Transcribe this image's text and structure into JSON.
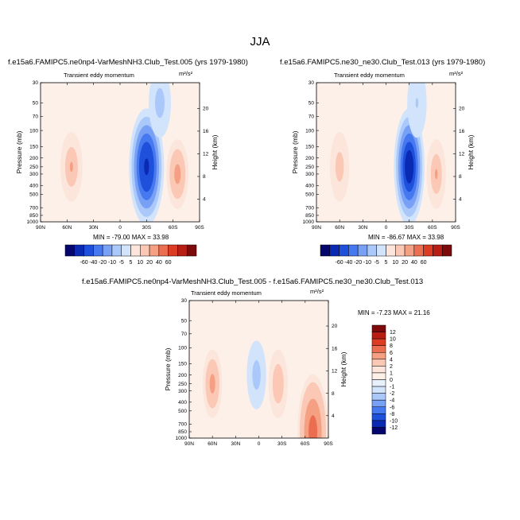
{
  "title": "JJA",
  "panels": [
    {
      "title": "f.e15a6.FAMIPC5.ne0np4-VarMeshNH3.Club_Test.005 (yrs 1979-1980)",
      "subtitle": "Transient eddy momentum",
      "units": "m²/s²",
      "ylabel": "Pressure (mb)",
      "y2label": "Height (km)",
      "minmax": "MIN = -79.00  MAX = 33.98"
    },
    {
      "title": "f.e15a6.FAMIPC5.ne30_ne30.Club_Test.013 (yrs 1979-1980)",
      "subtitle": "Transient eddy momentum",
      "units": "m²/s²",
      "ylabel": "Pressure (mb)",
      "y2label": "Height (km)",
      "minmax": "MIN = -86.67  MAX = 33.98"
    },
    {
      "title": "f.e15a6.FAMIPC5.ne0np4-VarMeshNH3.Club_Test.005 - f.e15a6.FAMIPC5.ne30_ne30.Club_Test.013",
      "subtitle": "Transient eddy momentum",
      "units": "m²/s²",
      "ylabel": "Pressure (mb)",
      "y2label": "Height (km)",
      "minmax": "MIN = -7.23  MAX = 21.16"
    }
  ],
  "chart_data": [
    {
      "type": "heatmap",
      "title": "f.e15a6.FAMIPC5.ne0np4-VarMeshNH3.Club_Test.005 (yrs 1979-1980)",
      "x_ticks": [
        "90N",
        "60N",
        "30N",
        "0",
        "30S",
        "60S",
        "90S"
      ],
      "y_ticks": [
        "30",
        "50",
        "70",
        "100",
        "150",
        "200",
        "250",
        "300",
        "400",
        "500",
        "700",
        "850",
        "1000"
      ],
      "y2_ticks": [
        "4",
        "8",
        "12",
        "16",
        "20"
      ],
      "xlabel": "",
      "ylabel": "Pressure (mb)",
      "y2label": "Height (km)",
      "min": -79.0,
      "max": 33.98,
      "features": [
        {
          "lat": 55,
          "p": 250,
          "value": 25
        },
        {
          "lat": -30,
          "p": 250,
          "value": -70
        },
        {
          "lat": -65,
          "p": 300,
          "value": 30
        },
        {
          "lat": -45,
          "p": 50,
          "value": -20
        }
      ]
    },
    {
      "type": "heatmap",
      "title": "f.e15a6.FAMIPC5.ne30_ne30.Club_Test.013 (yrs 1979-1980)",
      "x_ticks": [
        "90N",
        "60N",
        "30N",
        "0",
        "30S",
        "60S",
        "90S"
      ],
      "y_ticks": [
        "30",
        "50",
        "70",
        "100",
        "150",
        "200",
        "250",
        "300",
        "400",
        "500",
        "700",
        "850",
        "1000"
      ],
      "y2_ticks": [
        "4",
        "8",
        "12",
        "16",
        "20"
      ],
      "xlabel": "",
      "ylabel": "Pressure (mb)",
      "y2label": "Height (km)",
      "min": -86.67,
      "max": 33.98,
      "features": [
        {
          "lat": 60,
          "p": 250,
          "value": 20
        },
        {
          "lat": -30,
          "p": 250,
          "value": -80
        },
        {
          "lat": -65,
          "p": 300,
          "value": 30
        },
        {
          "lat": -40,
          "p": 50,
          "value": -15
        }
      ]
    },
    {
      "type": "heatmap",
      "title": "f.e15a6.FAMIPC5.ne0np4-VarMeshNH3.Club_Test.005 - f.e15a6.FAMIPC5.ne30_ne30.Club_Test.013",
      "x_ticks": [
        "90N",
        "60N",
        "30N",
        "0",
        "30S",
        "60S",
        "90S"
      ],
      "y_ticks": [
        "30",
        "50",
        "70",
        "100",
        "150",
        "200",
        "250",
        "300",
        "400",
        "500",
        "700",
        "850",
        "1000"
      ],
      "y2_ticks": [
        "4",
        "8",
        "12",
        "16",
        "20"
      ],
      "xlabel": "",
      "ylabel": "Pressure (mb)",
      "y2label": "Height (km)",
      "min": -7.23,
      "max": 21.16,
      "features": [
        {
          "lat": 60,
          "p": 250,
          "value": 8
        },
        {
          "lat": -25,
          "p": 250,
          "value": 6
        },
        {
          "lat": 3,
          "p": 200,
          "value": -5
        },
        {
          "lat": -70,
          "p": 850,
          "value": 12
        }
      ]
    }
  ],
  "colorbars": {
    "top_labels": [
      "-60",
      "-40",
      "-20",
      "-10",
      "-5",
      "5",
      "10",
      "20",
      "40",
      "60"
    ],
    "diff_labels": [
      "12",
      "10",
      "8",
      "6",
      "4",
      "2",
      "1",
      "0",
      "-1",
      "-2",
      "-4",
      "-6",
      "-8",
      "-10",
      "-12"
    ],
    "top_colors": [
      "#05056e",
      "#0a2ab4",
      "#1e50dc",
      "#4678f0",
      "#78a0f5",
      "#aac8fa",
      "#d2e4fc",
      "#fce6dc",
      "#fac8b4",
      "#f5a082",
      "#eb6e50",
      "#dc3c23",
      "#b91e14",
      "#7d0a0a"
    ],
    "diff_colors": [
      "#7d0a0a",
      "#b91e14",
      "#dc3c23",
      "#eb6e50",
      "#f5a082",
      "#fac8b4",
      "#fce6dc",
      "#fdf0e8",
      "#e8f0fc",
      "#d2e4fc",
      "#aac8fa",
      "#78a0f5",
      "#4678f0",
      "#1e50dc",
      "#0a2ab4",
      "#05056e"
    ]
  }
}
